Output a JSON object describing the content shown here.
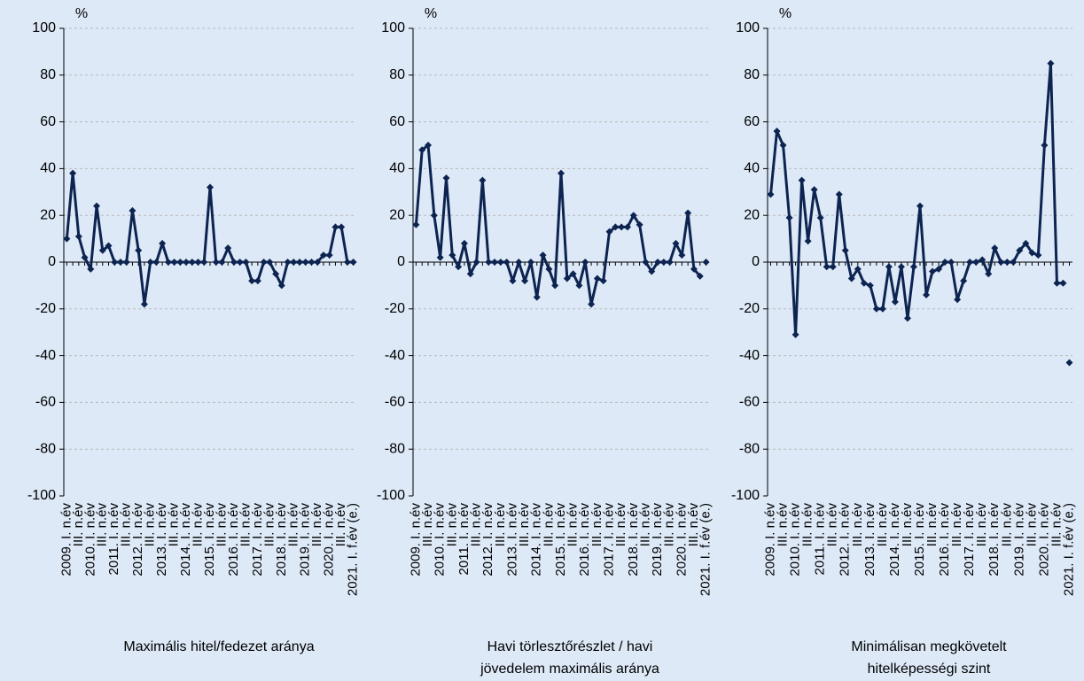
{
  "chart_data": [
    {
      "type": "line",
      "y_unit": "%",
      "title": [
        "Maximális hitel/fedezet aránya"
      ],
      "categories": [
        "2009. I. n.év",
        null,
        "III. n.év",
        null,
        "2010. I. n.év",
        null,
        "III. n.év",
        null,
        "2011. I. n.év",
        null,
        "III. n.év",
        null,
        "2012. I. n.év",
        null,
        "III. n.év",
        null,
        "2013. I. n.év",
        null,
        "III. n.év",
        null,
        "2014. I. n.év",
        null,
        "III. n.év",
        null,
        "2015. I. n.év",
        null,
        "III. n.év",
        null,
        "2016. I. n.év",
        null,
        "III. n.év",
        null,
        "2017. I. n.év",
        null,
        "III. n.év",
        null,
        "2018. I. n.év",
        null,
        "III. n.év",
        null,
        "2019. I. n.év",
        null,
        "III. n.év",
        null,
        "2020. I. n.év",
        null,
        "III. n.év",
        null,
        "2021. I. f.év (e.)"
      ],
      "series": [
        {
          "color": "#0d2451",
          "values": [
            10,
            38,
            11,
            2,
            -3,
            24,
            5,
            7,
            0,
            0,
            0,
            22,
            5,
            -18,
            0,
            0,
            8,
            0,
            0,
            0,
            0,
            0,
            0,
            0,
            32,
            0,
            0,
            6,
            0,
            0,
            0,
            -8,
            -8,
            0,
            0,
            -5,
            -10,
            0,
            0,
            0,
            0,
            0,
            0,
            3,
            3,
            15,
            15,
            0,
            0
          ]
        }
      ],
      "last_point_separate": false,
      "ylim": [
        -100,
        100
      ],
      "yticks": [
        -100,
        -80,
        -60,
        -40,
        -20,
        0,
        20,
        40,
        60,
        80,
        100
      ],
      "grid": true
    },
    {
      "type": "line",
      "y_unit": "%",
      "title": [
        "Havi törlesztőrészlet / havi",
        "jövedelem maximális aránya"
      ],
      "categories": [
        "2009. I. n.év",
        null,
        "III. n.év",
        null,
        "2010. I. n.év",
        null,
        "III. n.év",
        null,
        "2011. I. n.év",
        null,
        "III. n.év",
        null,
        "2012. I. n.év",
        null,
        "III. n.év",
        null,
        "2013. I. n.év",
        null,
        "III. n.év",
        null,
        "2014. I. n.év",
        null,
        "III. n.év",
        null,
        "2015. I. n.év",
        null,
        "III. n.év",
        null,
        "2016. I. n.év",
        null,
        "III. n.év",
        null,
        "2017. I. n.év",
        null,
        "III. n.év",
        null,
        "2018. I. n.év",
        null,
        "III. n.év",
        null,
        "2019. I. n.év",
        null,
        "III. n.év",
        null,
        "2020. I. n.év",
        null,
        "III. n.év",
        null,
        "2021. I. f.év (e.)"
      ],
      "series": [
        {
          "color": "#0d2451",
          "values": [
            16,
            48,
            50,
            20,
            2,
            36,
            3,
            -2,
            8,
            -5,
            0,
            35,
            0,
            0,
            0,
            0,
            -8,
            0,
            -8,
            0,
            -15,
            3,
            -3,
            -10,
            38,
            -7,
            -5,
            -10,
            0,
            -18,
            -7,
            -8,
            13,
            15,
            15,
            15,
            20,
            16,
            0,
            -4,
            0,
            0,
            0,
            8,
            3,
            21,
            -3,
            -6,
            0
          ]
        }
      ],
      "last_point_separate": true,
      "ylim": [
        -100,
        100
      ],
      "yticks": [
        -100,
        -80,
        -60,
        -40,
        -20,
        0,
        20,
        40,
        60,
        80,
        100
      ],
      "grid": true
    },
    {
      "type": "line",
      "y_unit": "%",
      "title": [
        "Minimálisan megkövetelt",
        "hitelképességi szint"
      ],
      "categories": [
        "2009. I. n.év",
        null,
        "III. n.év",
        null,
        "2010. I. n.év",
        null,
        "III. n.év",
        null,
        "2011. I. n.év",
        null,
        "III. n.év",
        null,
        "2012. I. n.év",
        null,
        "III. n.év",
        null,
        "2013. I. n.év",
        null,
        "III. n.év",
        null,
        "2014. I. n.év",
        null,
        "III. n.év",
        null,
        "2015. I. n.év",
        null,
        "III. n.év",
        null,
        "2016. I. n.év",
        null,
        "III. n.év",
        null,
        "2017. I. n.év",
        null,
        "III. n.év",
        null,
        "2018. I. n.év",
        null,
        "III. n.év",
        null,
        "2019. I. n.év",
        null,
        "III. n.év",
        null,
        "2020. I. n.év",
        null,
        "III. n.év",
        null,
        "2021. I. f.év (e.)"
      ],
      "series": [
        {
          "color": "#0d2451",
          "values": [
            29,
            56,
            50,
            19,
            -31,
            35,
            9,
            31,
            19,
            -2,
            -2,
            29,
            5,
            -7,
            -3,
            -9,
            -10,
            -20,
            -20,
            -2,
            -17,
            -2,
            -24,
            -2,
            24,
            -14,
            -4,
            -3,
            0,
            0,
            -16,
            -8,
            0,
            0,
            1,
            -5,
            6,
            0,
            0,
            0,
            5,
            8,
            4,
            3,
            50,
            85,
            -9,
            -9,
            -43
          ]
        }
      ],
      "last_point_separate": true,
      "ylim": [
        -100,
        100
      ],
      "yticks": [
        -100,
        -80,
        -60,
        -40,
        -20,
        0,
        20,
        40,
        60,
        80,
        100
      ],
      "grid": true
    }
  ]
}
